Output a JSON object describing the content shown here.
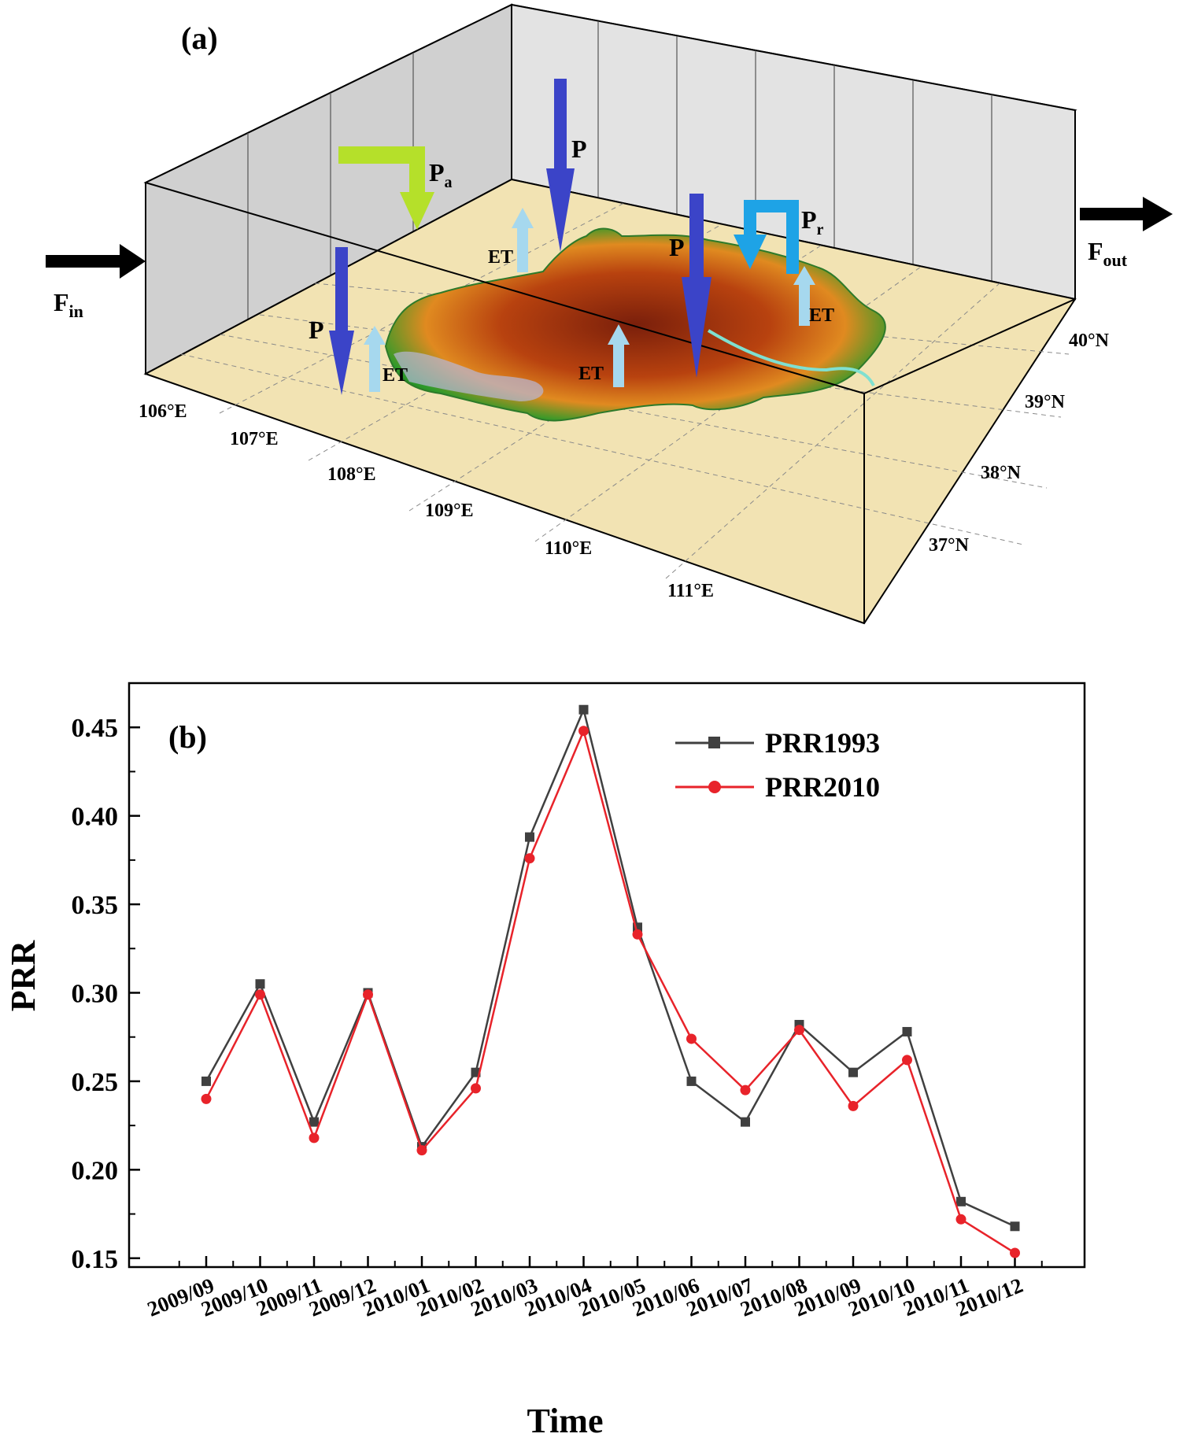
{
  "panel_a": {
    "label": "(a)",
    "flux_in": {
      "main": "F",
      "sub": "in"
    },
    "flux_out": {
      "main": "F",
      "sub": "out"
    },
    "p_label": "P",
    "pa_label": {
      "main": "P",
      "sub": "a"
    },
    "pr_label": {
      "main": "P",
      "sub": "r"
    },
    "et_label": "ET",
    "lon_ticks": [
      "106°E",
      "107°E",
      "108°E",
      "109°E",
      "110°E",
      "111°E"
    ],
    "lat_ticks": [
      "37°N",
      "38°N",
      "39°N",
      "40°N"
    ],
    "colors": {
      "precip_arrow": "#3b44c8",
      "advected_arrow": "#b5e02a",
      "recycled_arrow": "#1ea3e6",
      "et_arrow": "#a6d8ee",
      "ground": "#f2e3b3",
      "wall": "#d8d8d8",
      "flux_arrow": "#000000"
    }
  },
  "chart_data": {
    "type": "line",
    "panel_label": "(b)",
    "xlabel": "Time",
    "ylabel": "PRR",
    "categories": [
      "2009/09",
      "2009/10",
      "2009/11",
      "2009/12",
      "2010/01",
      "2010/02",
      "2010/03",
      "2010/04",
      "2010/05",
      "2010/06",
      "2010/07",
      "2010/08",
      "2010/09",
      "2010/10",
      "2010/11",
      "2010/12"
    ],
    "ylim": [
      0.145,
      0.475
    ],
    "yticks": [
      "0.15",
      "0.20",
      "0.25",
      "0.30",
      "0.35",
      "0.40",
      "0.45"
    ],
    "series": [
      {
        "name": "PRR1993",
        "color": "#404040",
        "marker": "square",
        "values": [
          0.25,
          0.305,
          0.227,
          0.3,
          0.213,
          0.255,
          0.388,
          0.46,
          0.337,
          0.25,
          0.227,
          0.282,
          0.255,
          0.278,
          0.182,
          0.168
        ]
      },
      {
        "name": "PRR2010",
        "color": "#e8232a",
        "marker": "circle",
        "values": [
          0.24,
          0.299,
          0.218,
          0.299,
          0.211,
          0.246,
          0.376,
          0.448,
          0.333,
          0.274,
          0.245,
          0.279,
          0.236,
          0.262,
          0.172,
          0.153
        ]
      }
    ],
    "legend_position": "top-right",
    "grid": false
  }
}
